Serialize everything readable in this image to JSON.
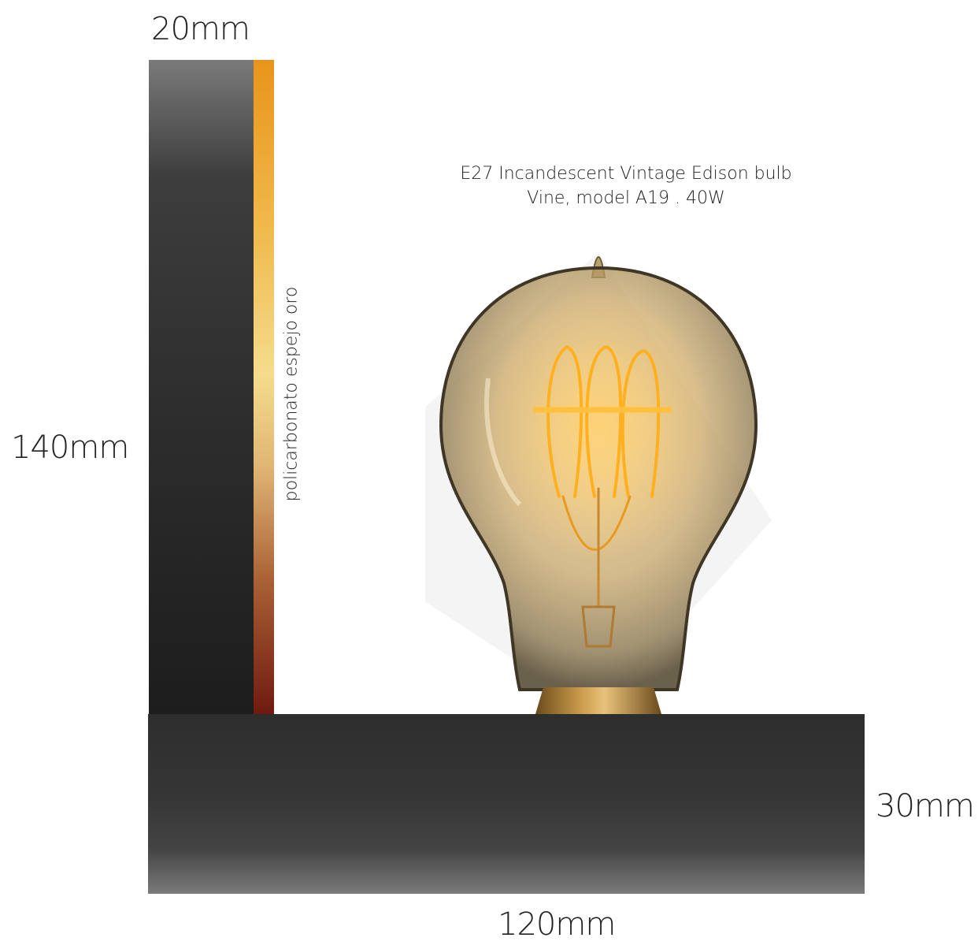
{
  "dimensions": {
    "top": "20mm",
    "left": "140mm",
    "right": "30mm",
    "bottom": "120mm"
  },
  "strip_label": "policarbonato espejo oro",
  "bulb": {
    "caption_line1": "E27 Incandescent Vintage Edison bulb",
    "caption_line2": "Vine, model A19 . 40W"
  },
  "colors": {
    "post": "#2f2f2f",
    "base": "#353535",
    "gold_strip_top": "#e8941a",
    "gold_strip_bottom": "#6e1a10",
    "filament": "#ffb020"
  }
}
